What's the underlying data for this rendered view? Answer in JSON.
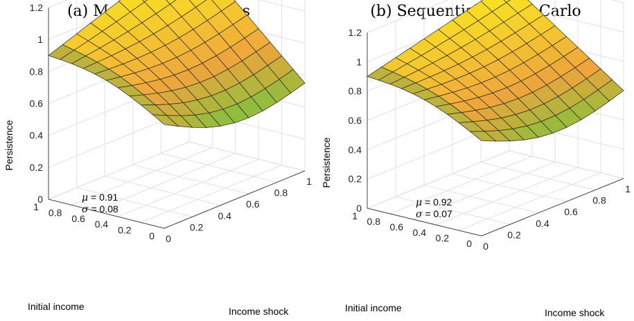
{
  "panels": [
    {
      "title": "(a) Metropolis Hastings",
      "stats": [
        {
          "symbol": "μ",
          "text": " = 0.91"
        },
        {
          "symbol": "σ",
          "text": " = 0.08"
        }
      ]
    },
    {
      "title": "(b) Sequential Monte Carlo",
      "stats": [
        {
          "symbol": "μ",
          "text": " = 0.92"
        },
        {
          "symbol": "σ",
          "text": " = 0.07"
        }
      ]
    }
  ],
  "chart_data": [
    {
      "type": "surface",
      "title": "(a) Metropolis Hastings",
      "xlabel": "Income shock",
      "ylabel": "Initial income",
      "zlabel": "Persistence",
      "xlim": [
        0,
        1
      ],
      "ylim": [
        0,
        1
      ],
      "zlim": [
        0,
        1.2
      ],
      "xticks": [
        "0",
        "0.2",
        "0.4",
        "0.6",
        "0.8",
        "1"
      ],
      "yticks": [
        "0",
        "0.2",
        "0.4",
        "0.6",
        "0.8",
        "1"
      ],
      "zticks": [
        "0",
        "0.2",
        "0.4",
        "0.6",
        "0.8",
        "1",
        "1.2"
      ],
      "grid": true,
      "corner_values": {
        "x0_y0": 0.65,
        "x1_y0": 0.55,
        "x0_y1": 0.9,
        "x1_y1": 1.22
      },
      "annotation": {
        "mu": 0.91,
        "sigma": 0.08
      }
    },
    {
      "type": "surface",
      "title": "(b) Sequential Monte Carlo",
      "xlabel": "Income shock",
      "ylabel": "Initial income",
      "zlabel": "Persistence",
      "xlim": [
        0,
        1
      ],
      "ylim": [
        0,
        1
      ],
      "zlim": [
        0,
        1.2
      ],
      "xticks": [
        "0",
        "0.2",
        "0.4",
        "0.6",
        "0.8",
        "1"
      ],
      "yticks": [
        "0",
        "0.2",
        "0.4",
        "0.6",
        "0.8",
        "1"
      ],
      "zticks": [
        "0",
        "0.2",
        "0.4",
        "0.6",
        "0.8",
        "1",
        "1.2"
      ],
      "grid": true,
      "corner_values": {
        "x0_y0": 0.65,
        "x1_y0": 0.6,
        "x0_y1": 0.9,
        "x1_y1": 1.15
      },
      "annotation": {
        "mu": 0.92,
        "sigma": 0.07
      }
    }
  ]
}
